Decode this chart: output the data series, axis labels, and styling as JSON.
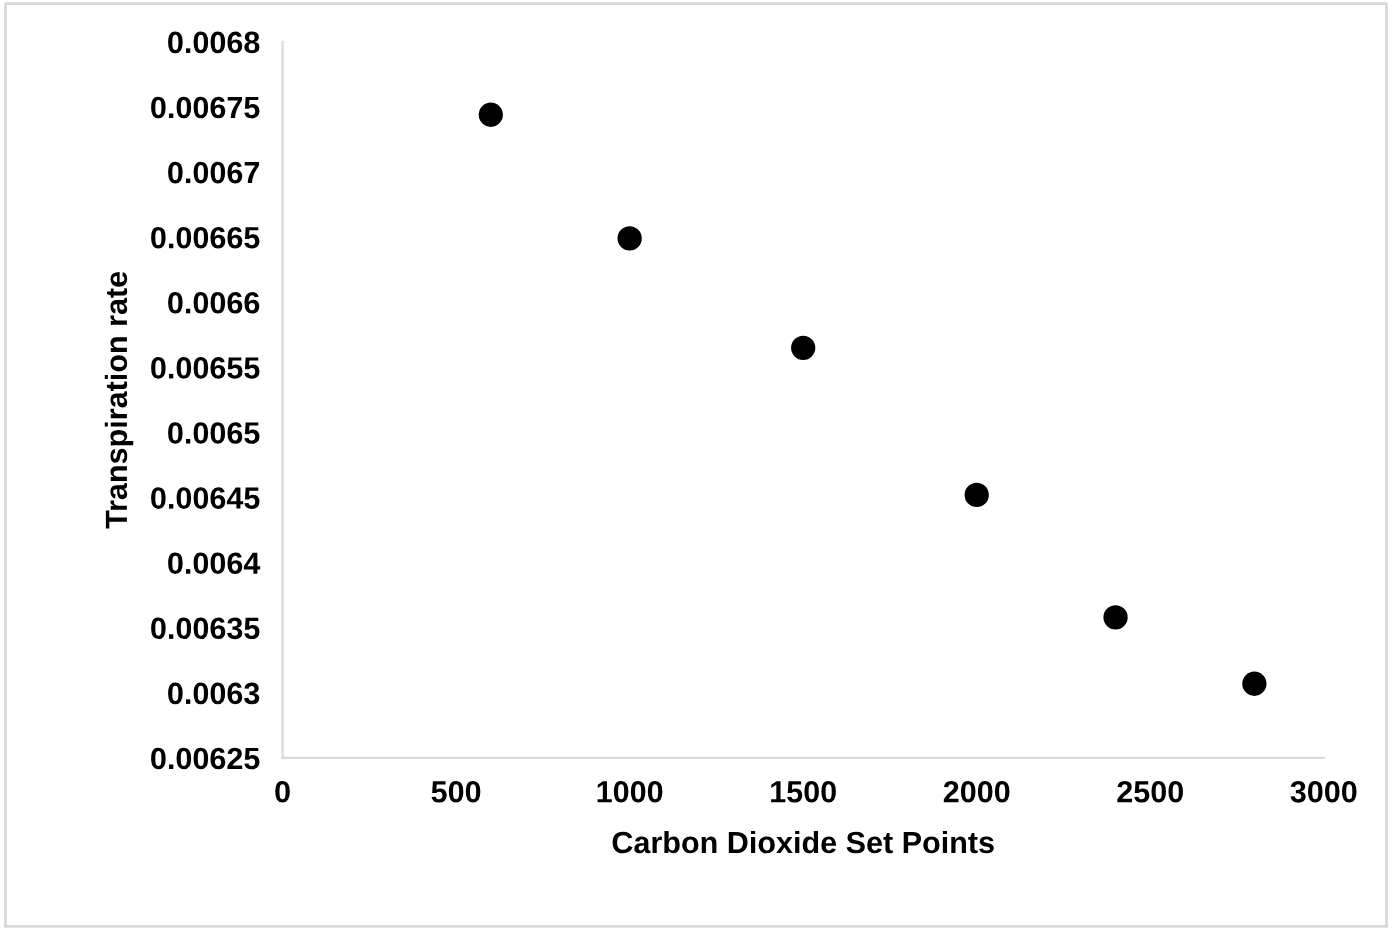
{
  "chart_data": {
    "type": "scatter",
    "xlabel": "Carbon Dioxide Set Points",
    "ylabel": "Transpiration rate",
    "x": [
      600,
      1000,
      1500,
      2000,
      2400,
      2800
    ],
    "series": [
      {
        "color": "#000000",
        "values": [
          0.006744,
          0.006649,
          0.006565,
          0.006452,
          0.006358,
          0.006307
        ]
      }
    ],
    "xlim": [
      0,
      3000
    ],
    "xticks": [
      0,
      500,
      1000,
      1500,
      2000,
      2500,
      3000
    ],
    "ylim": [
      0.00625,
      0.0068
    ],
    "yticks": [
      0.00625,
      0.0063,
      0.00635,
      0.0064,
      0.00645,
      0.0065,
      0.00655,
      0.0066,
      0.00665,
      0.0067,
      0.00675,
      0.0068
    ],
    "grid": false,
    "legend": false,
    "marker": "circle"
  }
}
